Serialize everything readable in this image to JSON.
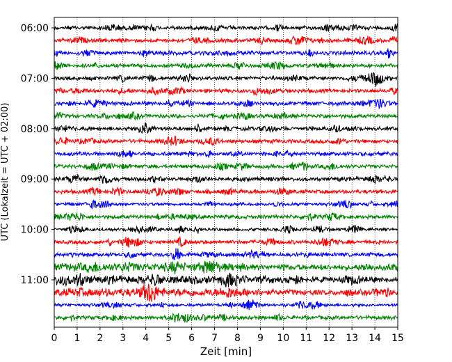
{
  "chart_data": {
    "type": "line",
    "title": "",
    "xlabel": "Zeit  [min]",
    "ylabel": "UTC (Lokalzeit = UTC + 02:00)",
    "xlim": [
      0,
      15
    ],
    "x_ticks": [
      0,
      1,
      2,
      3,
      4,
      5,
      6,
      7,
      8,
      9,
      10,
      11,
      12,
      13,
      14,
      15
    ],
    "x_tick_labels": [
      "0",
      "1",
      "2",
      "3",
      "4",
      "5",
      "6",
      "7",
      "8",
      "9",
      "10",
      "11",
      "12",
      "13",
      "14",
      "15"
    ],
    "grid": "vertical dotted",
    "y_tick_labels": [
      "06:00",
      "07:00",
      "08:00",
      "09:00",
      "10:00",
      "11:00"
    ],
    "y_tick_trace_index": [
      0,
      4,
      8,
      12,
      16,
      20
    ],
    "colors_cycle": [
      "#000000",
      "#ff0000",
      "#0000ff",
      "#008000"
    ],
    "series": [
      {
        "start": "06:00",
        "color": "#000000",
        "end_min": 15,
        "activity": "moderate"
      },
      {
        "start": "06:15",
        "color": "#ff0000",
        "end_min": 15,
        "activity": "moderate"
      },
      {
        "start": "06:30",
        "color": "#0000ff",
        "end_min": 15,
        "activity": "moderate"
      },
      {
        "start": "06:45",
        "color": "#008000",
        "end_min": 15,
        "activity": "moderate"
      },
      {
        "start": "07:00",
        "color": "#000000",
        "end_min": 15,
        "activity": "moderate"
      },
      {
        "start": "07:15",
        "color": "#ff0000",
        "end_min": 15,
        "activity": "moderate"
      },
      {
        "start": "07:30",
        "color": "#0000ff",
        "end_min": 15,
        "activity": "moderate"
      },
      {
        "start": "07:45",
        "color": "#008000",
        "end_min": 15,
        "activity": "moderate"
      },
      {
        "start": "08:00",
        "color": "#000000",
        "end_min": 15,
        "activity": "moderate"
      },
      {
        "start": "08:15",
        "color": "#ff0000",
        "end_min": 15,
        "activity": "moderate"
      },
      {
        "start": "08:30",
        "color": "#0000ff",
        "end_min": 15,
        "activity": "moderate"
      },
      {
        "start": "08:45",
        "color": "#008000",
        "end_min": 15,
        "activity": "moderate"
      },
      {
        "start": "09:00",
        "color": "#000000",
        "end_min": 15,
        "activity": "moderate"
      },
      {
        "start": "09:15",
        "color": "#ff0000",
        "end_min": 15,
        "activity": "moderate"
      },
      {
        "start": "09:30",
        "color": "#0000ff",
        "end_min": 15,
        "activity": "low"
      },
      {
        "start": "09:45",
        "color": "#008000",
        "end_min": 15,
        "activity": "moderate"
      },
      {
        "start": "10:00",
        "color": "#000000",
        "end_min": 15,
        "activity": "low"
      },
      {
        "start": "10:15",
        "color": "#ff0000",
        "end_min": 15,
        "activity": "moderate"
      },
      {
        "start": "10:30",
        "color": "#0000ff",
        "end_min": 15,
        "activity": "moderate"
      },
      {
        "start": "10:45",
        "color": "#008000",
        "end_min": 15,
        "activity": "high"
      },
      {
        "start": "11:00",
        "color": "#000000",
        "end_min": 15,
        "activity": "high"
      },
      {
        "start": "11:15",
        "color": "#ff0000",
        "end_min": 15,
        "activity": "high"
      },
      {
        "start": "11:30",
        "color": "#0000ff",
        "end_min": 15,
        "activity": "low"
      },
      {
        "start": "11:45",
        "color": "#008000",
        "end_min": 15,
        "activity": "moderate"
      }
    ]
  }
}
